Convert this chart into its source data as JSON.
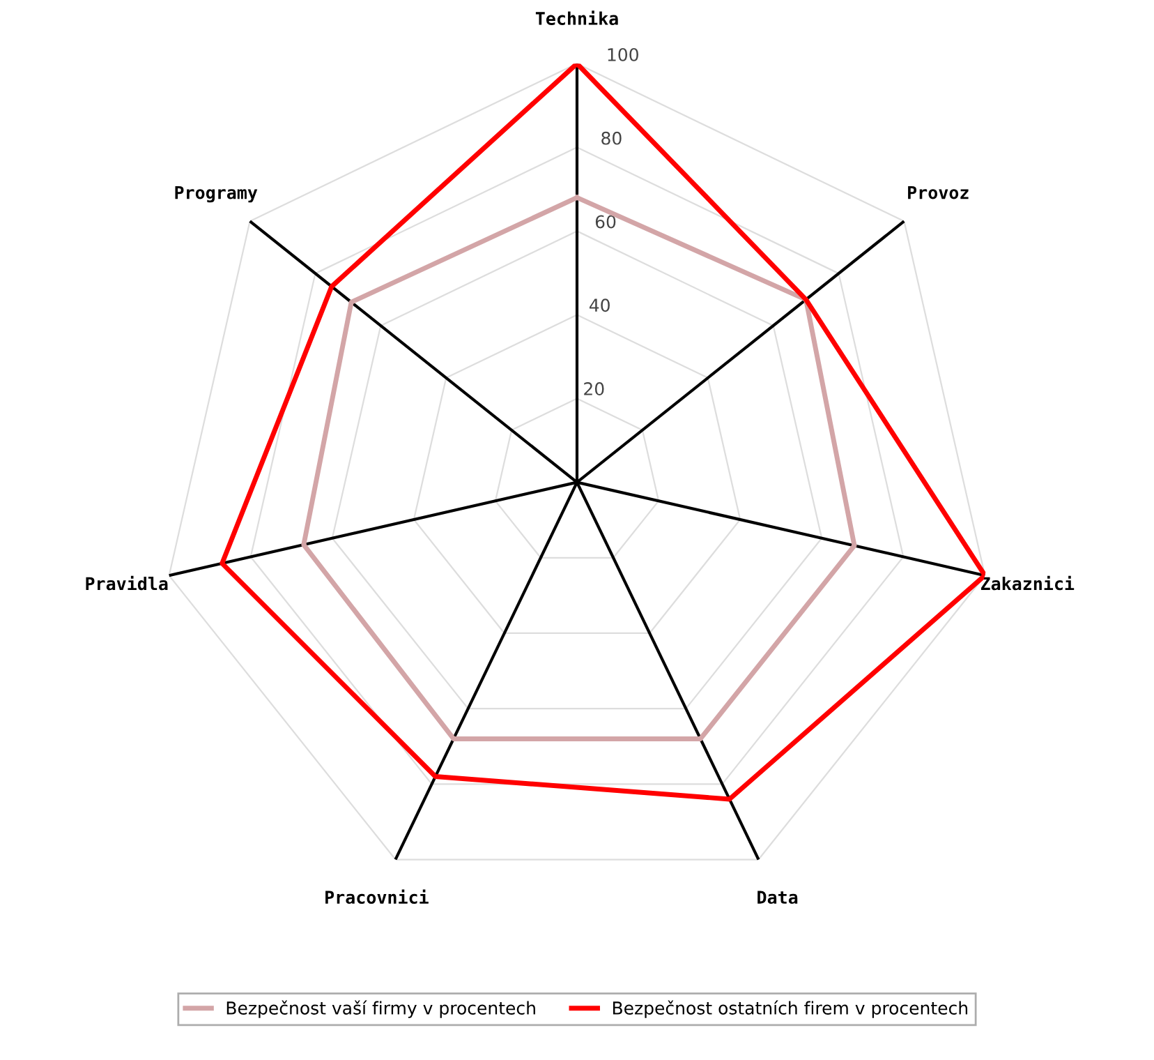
{
  "chart_data": {
    "type": "radar",
    "categories": [
      "Technika",
      "Provoz",
      "Zakaznici",
      "Data",
      "Pracovnici",
      "Pravidla",
      "Programy"
    ],
    "series": [
      {
        "name": "Bezpečnost vaší firmy v procentech",
        "color": "#d3a5a7",
        "values": [
          68,
          70,
          68,
          68,
          68,
          67,
          69
        ]
      },
      {
        "name": "Bezpečnost ostatních firem v procentech",
        "color": "#ff0000",
        "values": [
          100,
          70,
          100,
          84,
          78,
          87,
          75
        ]
      }
    ],
    "ylim": [
      0,
      100
    ],
    "yticks": [
      20,
      40,
      60,
      80,
      100
    ],
    "grid": true,
    "legend": "bottom"
  }
}
